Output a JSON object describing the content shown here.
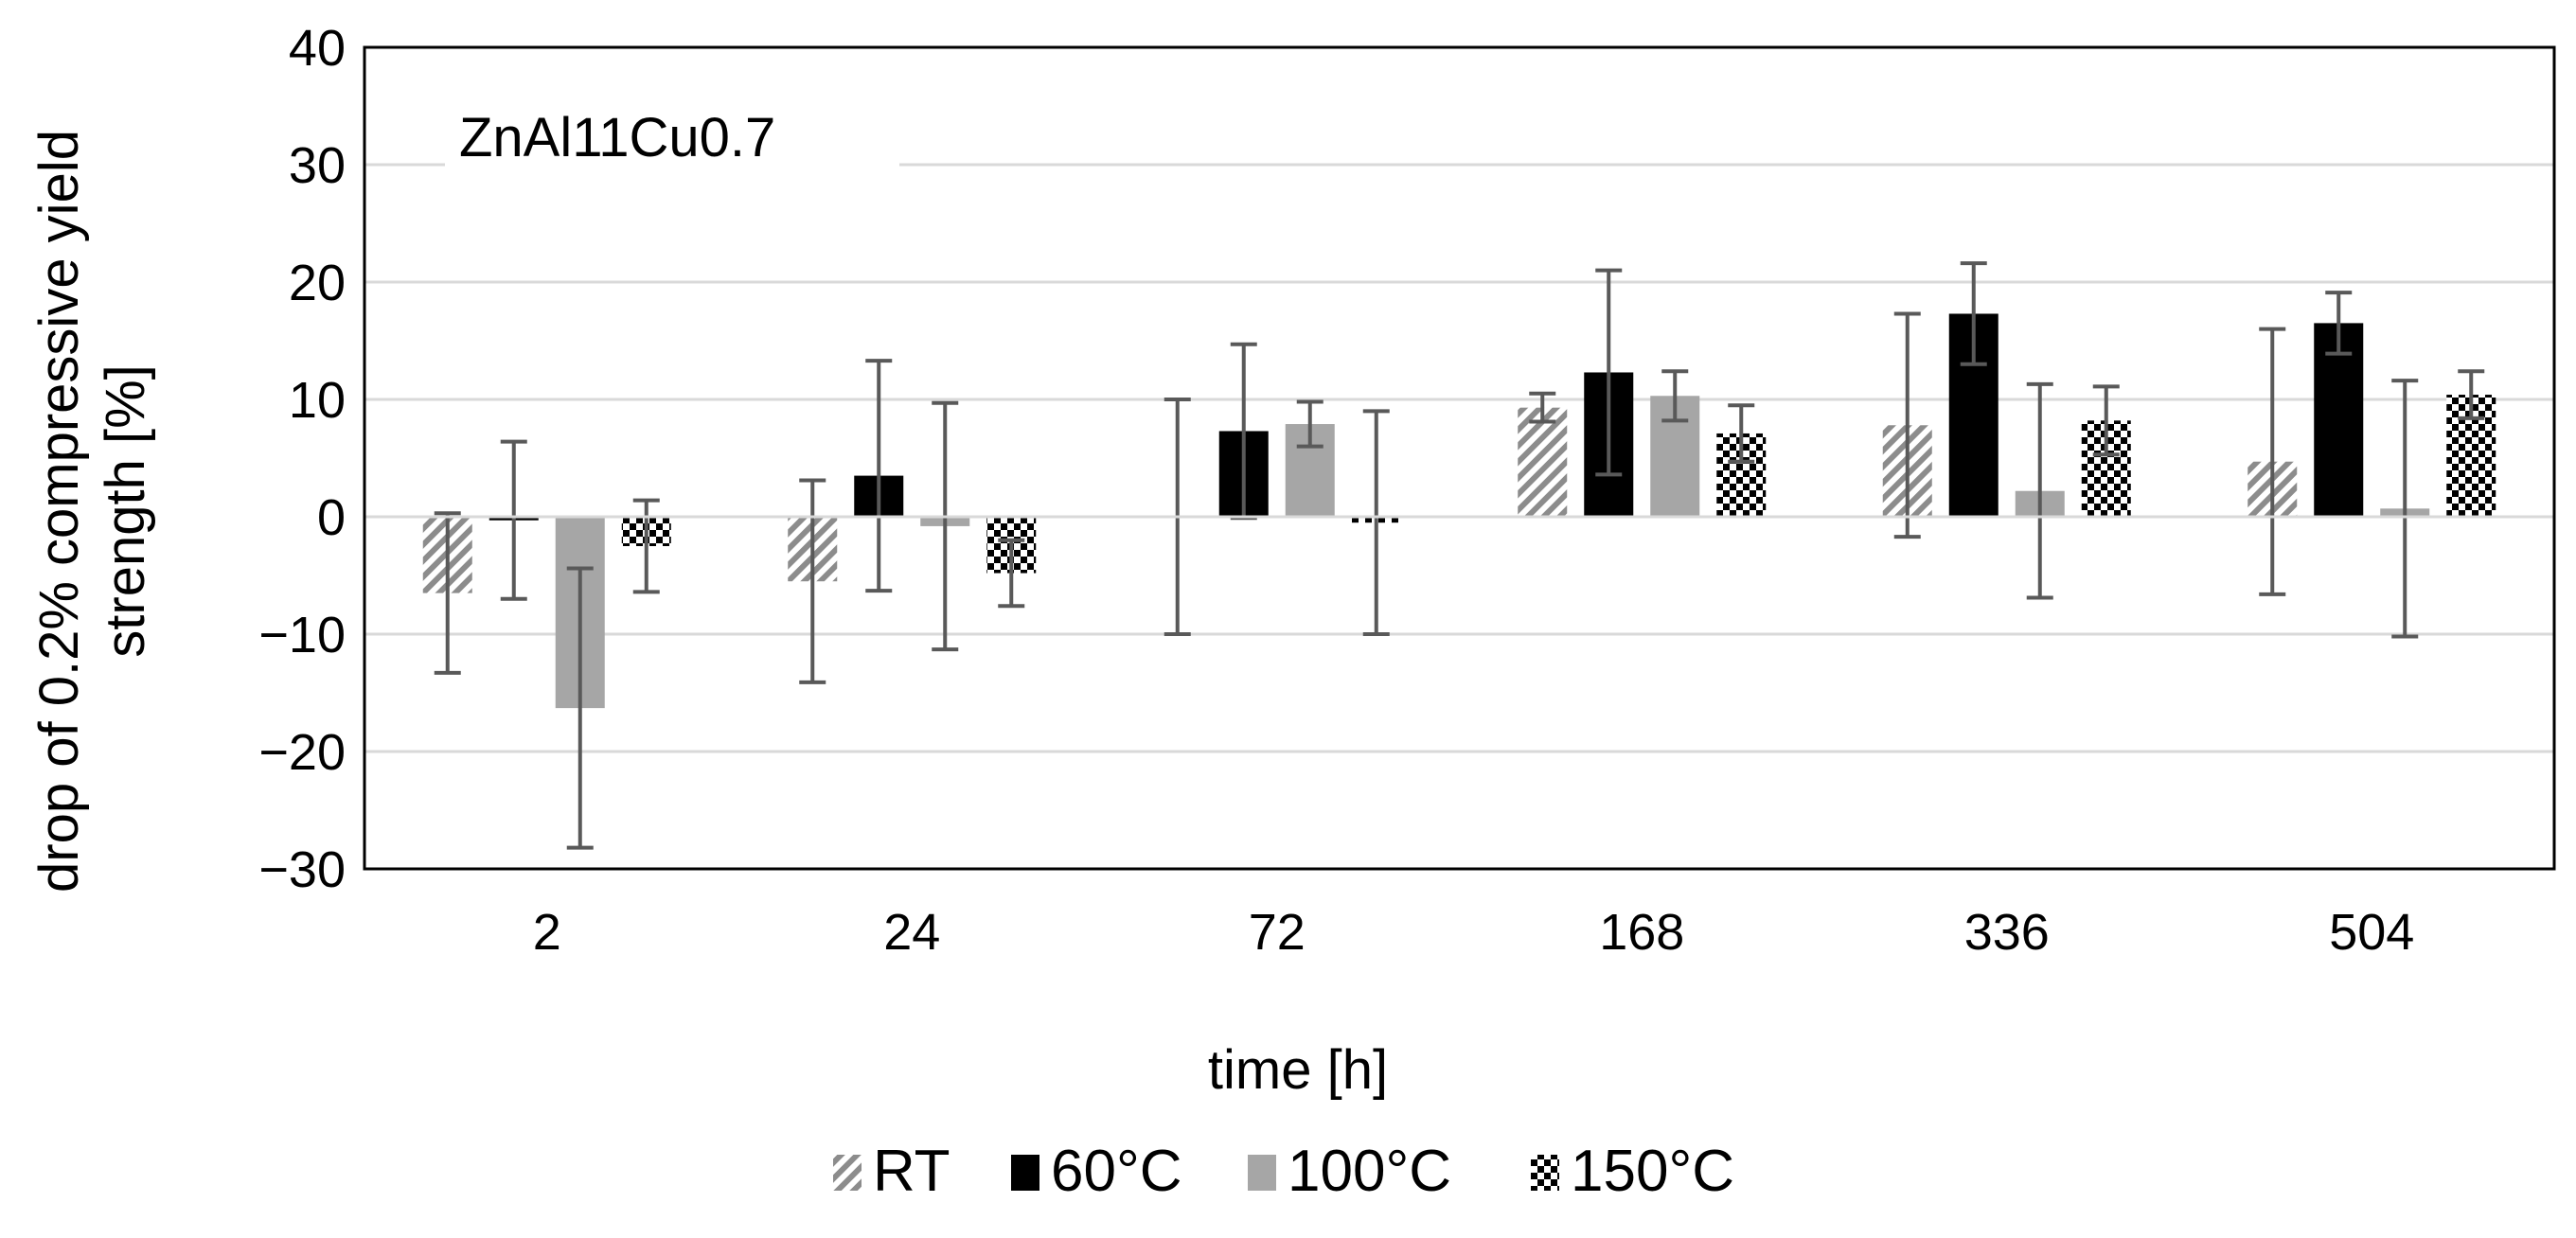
{
  "chart_data": {
    "type": "bar",
    "title": "",
    "annotation": "ZnAl11Cu0.7",
    "xlabel": "time [h]",
    "ylabel_lines": [
      "drop of 0.2% compressive yield",
      "strength [%]"
    ],
    "categories": [
      "2",
      "24",
      "72",
      "168",
      "336",
      "504"
    ],
    "ylim": [
      -30,
      40
    ],
    "yticks": [
      40,
      30,
      20,
      10,
      0,
      -10,
      -20,
      -30
    ],
    "ytick_labels": [
      "40",
      "30",
      "20",
      "10",
      "0",
      "−10",
      "−20",
      "−30"
    ],
    "grid": true,
    "legend_position": "bottom-center",
    "series": [
      {
        "name": "RT",
        "pattern": "diagonal-hatch",
        "color": "#8c8c8c",
        "values": [
          -6.5,
          -5.5,
          0.0,
          9.3,
          7.8,
          4.7
        ],
        "errors": [
          6.8,
          8.6,
          10.0,
          1.2,
          9.5,
          11.3
        ]
      },
      {
        "name": "60°C",
        "pattern": "solid",
        "color": "#000000",
        "values": [
          -0.3,
          3.5,
          7.3,
          12.3,
          17.3,
          16.5
        ],
        "errors": [
          6.7,
          9.8,
          7.4,
          8.7,
          4.3,
          2.6
        ]
      },
      {
        "name": "100°C",
        "pattern": "solid",
        "color": "#a6a6a6",
        "values": [
          -16.3,
          -0.8,
          7.9,
          10.3,
          2.2,
          0.7
        ],
        "errors": [
          11.9,
          10.5,
          1.9,
          2.1,
          9.1,
          10.9
        ]
      },
      {
        "name": "150°C",
        "pattern": "checker",
        "color": "#000000",
        "values": [
          -2.5,
          -4.8,
          -0.5,
          7.1,
          8.2,
          10.4
        ],
        "errors": [
          3.9,
          2.8,
          9.5,
          2.4,
          2.9,
          2.0
        ]
      }
    ]
  }
}
